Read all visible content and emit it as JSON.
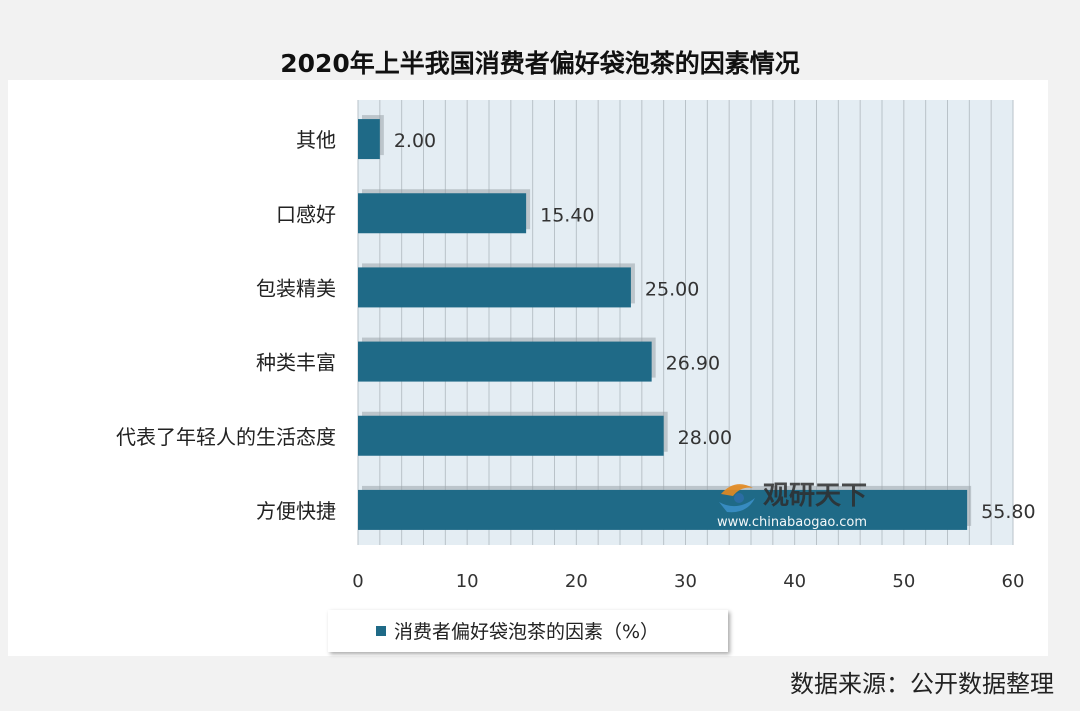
{
  "chart_data": {
    "type": "bar",
    "orientation": "horizontal",
    "title": "2020年上半我国消费者偏好袋泡茶的因素情况",
    "categories": [
      "其他",
      "口感好",
      "包装精美",
      "种类丰富",
      "代表了年轻人的生活态度",
      "方便快捷"
    ],
    "values": [
      2.0,
      15.4,
      25.0,
      26.9,
      28.0,
      55.8
    ],
    "value_labels": [
      "2.00",
      "15.40",
      "25.00",
      "26.90",
      "28.00",
      "55.80"
    ],
    "series": [
      {
        "name": "消费者偏好袋泡茶的因素（%）",
        "values": [
          2.0,
          15.4,
          25.0,
          26.9,
          28.0,
          55.8
        ]
      }
    ],
    "xlim": [
      0,
      60
    ],
    "x_ticks": [
      0,
      10,
      20,
      30,
      40,
      50,
      60
    ],
    "grid": true,
    "legend_position": "bottom",
    "bar_color": "#1f6a87"
  },
  "watermark": {
    "brand": "观研天下",
    "url": "www.chinabaogao.com"
  },
  "source_note": "数据来源：公开数据整理"
}
